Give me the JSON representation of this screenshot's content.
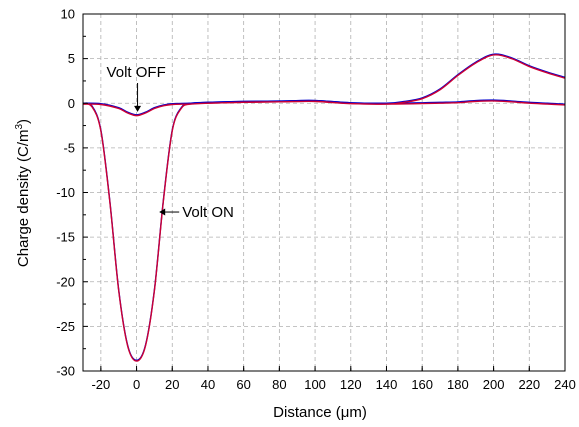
{
  "chart_data": {
    "type": "line",
    "xlabel": "Distance (μm)",
    "ylabel_main": "Charge density (C/m",
    "ylabel_sup": "3",
    "ylabel_close": ")",
    "xlim": [
      -30,
      240
    ],
    "ylim": [
      -30,
      10
    ],
    "xticks": [
      -20,
      0,
      20,
      40,
      60,
      80,
      100,
      120,
      140,
      160,
      180,
      200,
      220,
      240
    ],
    "yticks": [
      -30,
      -25,
      -20,
      -15,
      -10,
      -5,
      0,
      5,
      10
    ],
    "grid": true,
    "grid_style": "dashed",
    "annotations": [
      {
        "text": "Volt OFF",
        "target_x": 0,
        "target_y": -1.3
      },
      {
        "text": "Volt ON",
        "target_x": 11,
        "target_y": -12.3
      }
    ],
    "series": [
      {
        "color": "#0000cc",
        "x": [
          -30,
          -25,
          -20,
          -15,
          -10,
          -5,
          0,
          5,
          10,
          15,
          20,
          25,
          30,
          40,
          60,
          80,
          100,
          120,
          140,
          160,
          170,
          180,
          190,
          200,
          210,
          220,
          230,
          240
        ],
        "y": [
          0,
          -0.3,
          -3.0,
          -10.9,
          -20.9,
          -27.1,
          -28.8,
          -27.1,
          -20.9,
          -10.9,
          -3.0,
          -0.5,
          0.0,
          0.1,
          0.2,
          0.25,
          0.3,
          0.05,
          0.0,
          0.05,
          0.1,
          0.15,
          0.3,
          0.35,
          0.25,
          0.1,
          0.0,
          -0.1
        ]
      },
      {
        "color": "#cc0033",
        "x": [
          -30,
          -25,
          -20,
          -15,
          -10,
          -5,
          0,
          5,
          10,
          15,
          20,
          25,
          30,
          40,
          60,
          80,
          100,
          120,
          140,
          160,
          170,
          180,
          190,
          200,
          210,
          220,
          230,
          240
        ],
        "y": [
          0,
          -0.3,
          -3.0,
          -10.9,
          -20.9,
          -27.1,
          -28.8,
          -27.1,
          -20.9,
          -10.9,
          -3.0,
          -0.5,
          0.0,
          0.1,
          0.2,
          0.25,
          0.3,
          0.05,
          0.0,
          0.05,
          0.1,
          0.15,
          0.3,
          0.35,
          0.25,
          0.1,
          0.0,
          -0.1
        ]
      },
      {
        "color": "#0000cc",
        "x": [
          -30,
          -20,
          -10,
          -5,
          0,
          5,
          10,
          15,
          20,
          30,
          40,
          60,
          80,
          100,
          120,
          140,
          150,
          160,
          170,
          180,
          190,
          200,
          210,
          220,
          230,
          240
        ],
        "y": [
          0,
          -0.05,
          -0.5,
          -1.0,
          -1.3,
          -1.0,
          -0.5,
          -0.2,
          -0.05,
          0.0,
          0.1,
          0.2,
          0.25,
          0.3,
          0.05,
          0.0,
          0.2,
          0.6,
          1.6,
          3.2,
          4.6,
          5.5,
          5.1,
          4.2,
          3.5,
          2.9
        ]
      },
      {
        "color": "#cc0033",
        "x": [
          -30,
          -20,
          -10,
          -5,
          0,
          5,
          10,
          15,
          20,
          30,
          40,
          60,
          80,
          100,
          120,
          140,
          150,
          160,
          170,
          180,
          190,
          200,
          210,
          220,
          230,
          240
        ],
        "y": [
          0,
          -0.05,
          -0.5,
          -1.0,
          -1.3,
          -1.0,
          -0.5,
          -0.2,
          -0.05,
          0.0,
          0.1,
          0.2,
          0.25,
          0.3,
          0.05,
          0.0,
          0.2,
          0.6,
          1.6,
          3.2,
          4.6,
          5.5,
          5.1,
          4.2,
          3.5,
          2.9
        ]
      }
    ]
  }
}
